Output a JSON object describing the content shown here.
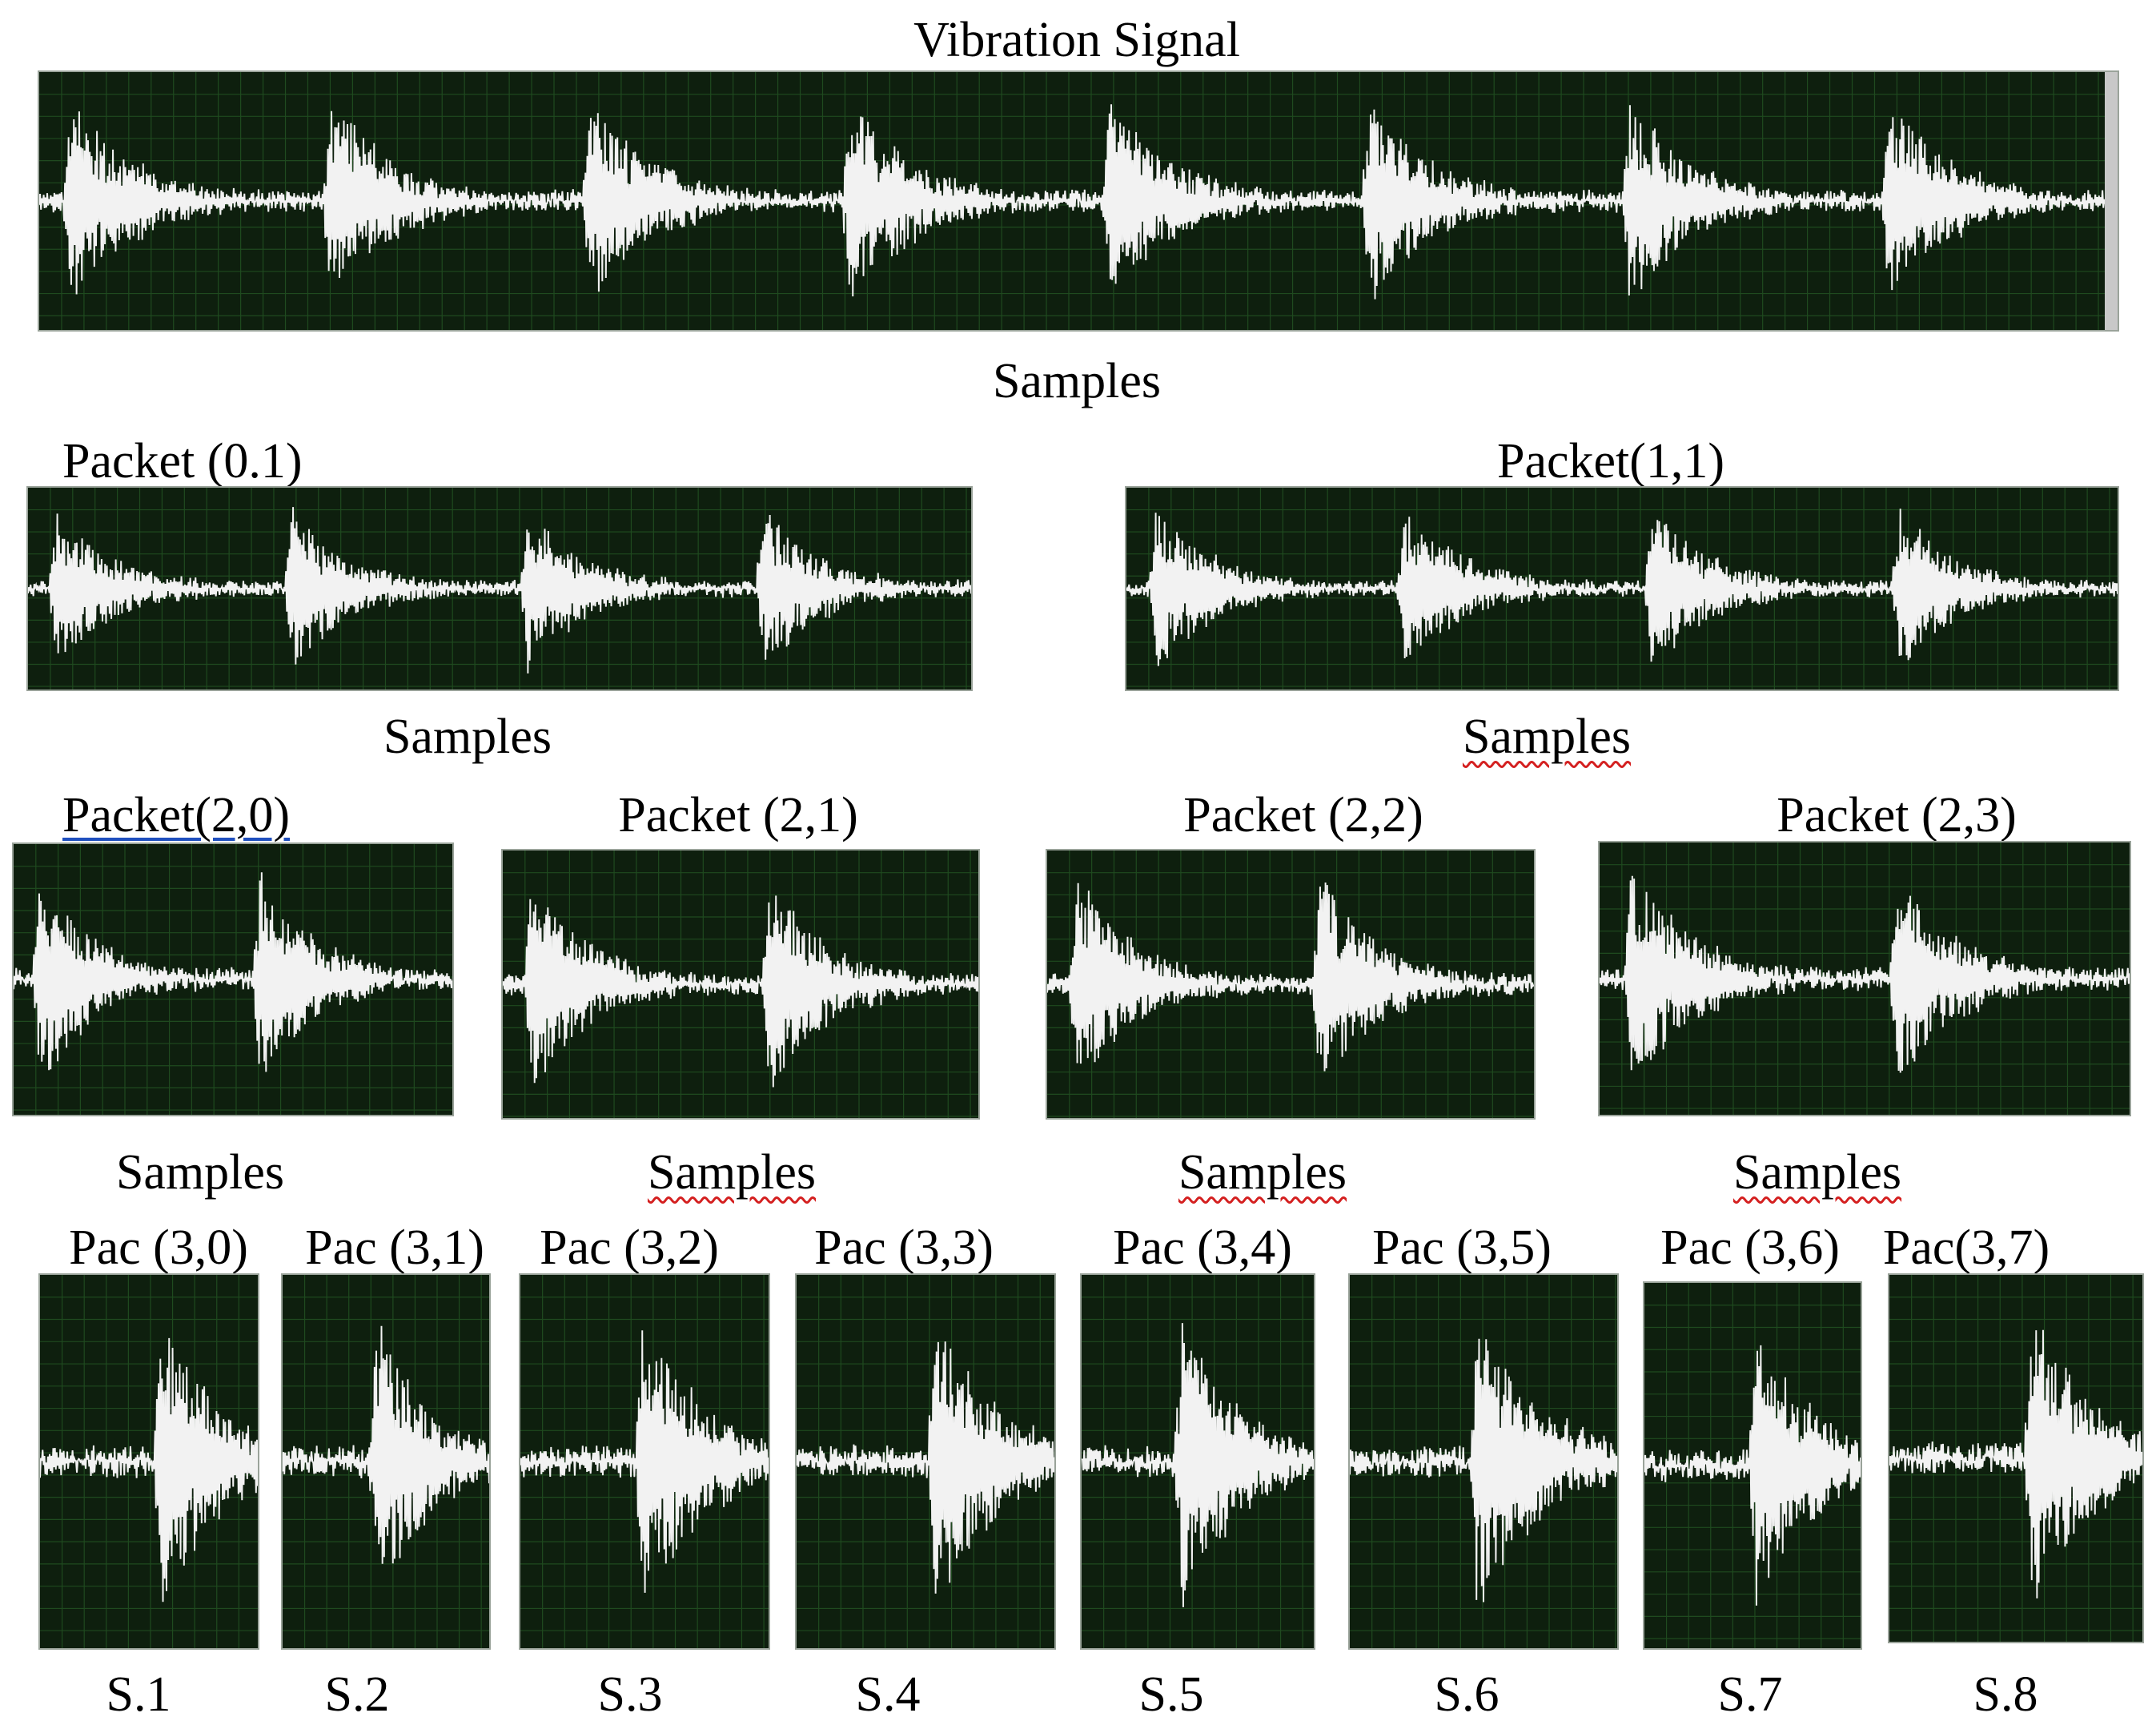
{
  "level0": {
    "title": "Vibration Signal",
    "x_label": "Samples",
    "bursts": 8
  },
  "level1": [
    {
      "title": "Packet (0.1)",
      "x_label": "Samples",
      "bursts": 4
    },
    {
      "title": "Packet(1,1)",
      "x_label": "Samples",
      "bursts": 4
    }
  ],
  "level2": [
    {
      "title": "Packet(2,0)",
      "x_label": "Samples",
      "bursts": 2
    },
    {
      "title": "Packet (2,1)",
      "x_label": "Samples",
      "bursts": 2
    },
    {
      "title": "Packet (2,2)",
      "x_label": "Samples",
      "bursts": 2
    },
    {
      "title": "Packet (2,3)",
      "x_label": "Samples",
      "bursts": 2
    }
  ],
  "level3": [
    {
      "title": "Pac (3,0)",
      "sample": "S.1",
      "bursts": 1
    },
    {
      "title": "Pac (3,1)",
      "sample": "S.2",
      "bursts": 1
    },
    {
      "title": "Pac (3,2)",
      "sample": "S.3",
      "bursts": 1
    },
    {
      "title": "Pac (3,3)",
      "sample": "S.4",
      "bursts": 1
    },
    {
      "title": "Pac (3,4)",
      "sample": "S.5",
      "bursts": 1
    },
    {
      "title": "Pac (3,5)",
      "sample": "S.6",
      "bursts": 1
    },
    {
      "title": "Pac (3,6)",
      "sample": "S.7",
      "bursts": 1
    },
    {
      "title": "Pac(3,7)",
      "sample": "S.8",
      "bursts": 1
    }
  ],
  "colors": {
    "plot_background": "#0e1f0e",
    "grid": "#1f4a1f",
    "signal": "#f2f2f2"
  }
}
